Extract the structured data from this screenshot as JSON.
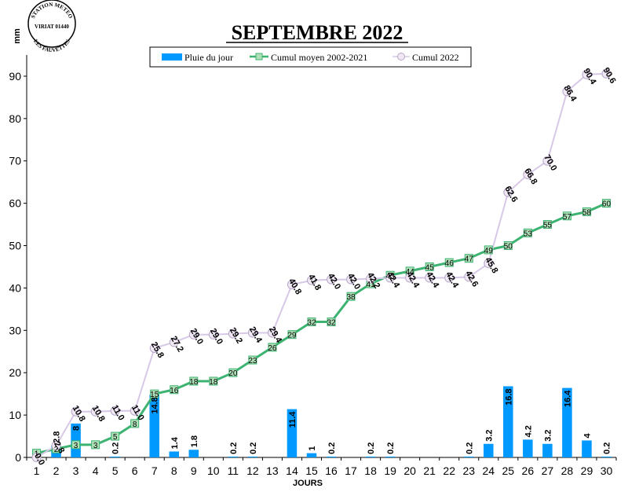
{
  "chart_data": {
    "type": "bar",
    "title": "SEPTEMBRE 2022",
    "ylabel": "mm",
    "xlabel": "JOURS",
    "ylim": [
      0,
      95
    ],
    "yticks": [
      0,
      10,
      20,
      30,
      40,
      50,
      60,
      70,
      80,
      90
    ],
    "categories": [
      "1",
      "2",
      "3",
      "4",
      "5",
      "6",
      "7",
      "8",
      "9",
      "10",
      "11",
      "12",
      "13",
      "14",
      "15",
      "16",
      "17",
      "18",
      "19",
      "20",
      "21",
      "22",
      "23",
      "24",
      "25",
      "26",
      "27",
      "28",
      "29",
      "30"
    ],
    "legend_position": "top",
    "series": [
      {
        "name": "Pluie du jour",
        "kind": "bar",
        "color": "#0099FF",
        "values": [
          0,
          2.8,
          8,
          0,
          0.2,
          0,
          14.8,
          1.4,
          1.8,
          0,
          0.2,
          0.2,
          0,
          11.4,
          1,
          0.2,
          0,
          0.2,
          0.2,
          0,
          0,
          0,
          0.2,
          3.2,
          16.8,
          4.2,
          3.2,
          16.4,
          4,
          0.2
        ],
        "labels": [
          "",
          "2.8",
          "8",
          "",
          "0.2",
          "",
          "14.8",
          "1.4",
          "1.8",
          "",
          "0.2",
          "0.2",
          "",
          "11.4",
          "1",
          "0.2",
          "",
          "0.2",
          "0.2",
          "",
          "",
          "",
          "0.2",
          "3.2",
          "16.8",
          "4.2",
          "3.2",
          "16.4",
          "4",
          "0.2"
        ]
      },
      {
        "name": "Cumul moyen 2002-2021",
        "kind": "line",
        "color": "#3CB371",
        "values": [
          1,
          2,
          3,
          3,
          5,
          8,
          15,
          16,
          18,
          18,
          20,
          23,
          26,
          29,
          32,
          32,
          38,
          41,
          43,
          44,
          45,
          46,
          47,
          49,
          50,
          53,
          55,
          57,
          58,
          60
        ],
        "labels": [
          "1",
          "2",
          "3",
          "3",
          "5",
          "8",
          "15",
          "16",
          "18",
          "18",
          "20",
          "23",
          "26",
          "29",
          "32",
          "32",
          "38",
          "41",
          "43",
          "44",
          "45",
          "46",
          "47",
          "49",
          "50",
          "53",
          "55",
          "57",
          "58",
          "60"
        ]
      },
      {
        "name": "Cumul 2022",
        "kind": "line",
        "color": "#D8C8E8",
        "values": [
          0,
          2.8,
          10.8,
          10.8,
          11.0,
          11.0,
          25.8,
          27.2,
          29.0,
          29.0,
          29.2,
          29.4,
          29.4,
          40.8,
          41.8,
          42.0,
          42.0,
          42.2,
          42.4,
          42.4,
          42.4,
          42.4,
          42.6,
          45.8,
          62.6,
          66.8,
          70.0,
          86.4,
          90.4,
          90.6
        ],
        "labels": [
          "0.0",
          "2.8",
          "10.8",
          "10.8",
          "11.0",
          "11.0",
          "25.8",
          "27.2",
          "29.0",
          "29.0",
          "29.2",
          "29.4",
          "29.4",
          "40.8",
          "41.8",
          "42.0",
          "42.0",
          "42.2",
          "42.4",
          "42.4",
          "42.4",
          "42.4",
          "42.6",
          "45.8",
          "62.6",
          "66.8",
          "70.0",
          "86.4",
          "90.4",
          "90.6"
        ]
      }
    ]
  },
  "logo": {
    "line1": "STATION METEO",
    "line2": "VIRIAT 01440",
    "line3": "LES FAUVETTES"
  }
}
